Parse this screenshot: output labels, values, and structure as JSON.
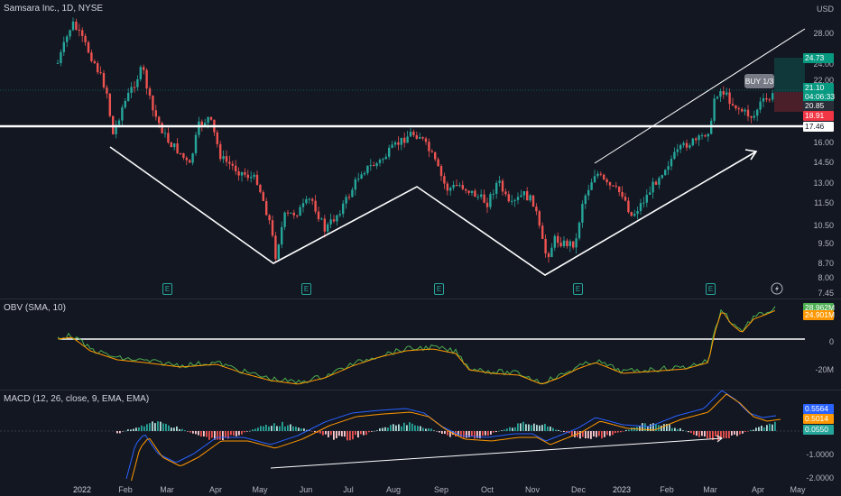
{
  "main": {
    "title": "Samsara Inc., 1D, NYSE",
    "currency": "USD",
    "y_ticks": [
      "28.00",
      "24.00",
      "22.00",
      "19.00",
      "16.00",
      "14.50",
      "13.00",
      "11.50",
      "10.50",
      "9.50",
      "8.70",
      "8.00",
      "7.45"
    ],
    "price_tags": [
      {
        "value": "24.73",
        "color": "#089981"
      },
      {
        "value": "21.10",
        "color": "#089981"
      },
      {
        "value": "04:06:33",
        "color": "#089981"
      },
      {
        "value": "20.85",
        "color": "#2a2e39"
      },
      {
        "value": "18.91",
        "color": "#f23645"
      },
      {
        "value": "17.46",
        "color": "#ffffff"
      }
    ],
    "order_label": "BUY 1/3",
    "earnings_marker": "E"
  },
  "obv": {
    "title": "OBV (SMA, 10)",
    "tags": [
      {
        "value": "28.962M",
        "color": "#4caf50"
      },
      {
        "value": "24.901M",
        "color": "#ff9800"
      }
    ],
    "y_ticks": [
      "0",
      "-20M"
    ]
  },
  "macd": {
    "title": "MACD (12, 26, close, 9, EMA, EMA)",
    "tags": [
      {
        "value": "0.5564",
        "color": "#2962ff"
      },
      {
        "value": "0.5014",
        "color": "#ff9800"
      },
      {
        "value": "0.0550",
        "color": "#26a69a"
      }
    ],
    "y_ticks": [
      "-1.0000",
      "-2.0000"
    ]
  },
  "x_axis": [
    "2022",
    "Feb",
    "Mar",
    "Apr",
    "May",
    "Jun",
    "Jul",
    "Aug",
    "Sep",
    "Oct",
    "Nov",
    "Dec",
    "2023",
    "Feb",
    "Mar",
    "Apr",
    "May"
  ]
}
